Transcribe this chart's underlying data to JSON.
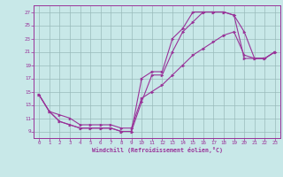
{
  "xlabel": "Windchill (Refroidissement éolien,°C)",
  "background_color": "#c8e8e8",
  "grid_color": "#99bbbb",
  "line_color": "#993399",
  "spine_color": "#993399",
  "xlim": [
    -0.5,
    23.5
  ],
  "ylim": [
    8.0,
    28.0
  ],
  "xticks": [
    0,
    1,
    2,
    3,
    4,
    5,
    6,
    7,
    8,
    9,
    10,
    11,
    12,
    13,
    14,
    15,
    16,
    17,
    18,
    19,
    20,
    21,
    22,
    23
  ],
  "yticks": [
    9,
    11,
    13,
    15,
    17,
    19,
    21,
    23,
    25,
    27
  ],
  "line1_x": [
    0,
    1,
    2,
    3,
    4,
    5,
    6,
    7,
    8,
    9,
    10,
    11,
    12,
    13,
    14,
    15,
    16,
    17,
    18,
    19,
    20,
    21,
    22,
    23
  ],
  "line1_y": [
    14.5,
    12.0,
    10.5,
    10.0,
    9.5,
    9.5,
    9.5,
    9.5,
    9.0,
    9.0,
    13.5,
    17.5,
    17.5,
    21.0,
    24.0,
    25.5,
    27.0,
    27.0,
    27.0,
    26.5,
    20.0,
    20.0,
    20.0,
    21.0
  ],
  "line2_x": [
    0,
    1,
    2,
    3,
    4,
    5,
    6,
    7,
    8,
    9,
    10,
    11,
    12,
    13,
    14,
    15,
    16,
    17,
    18,
    19,
    20,
    21,
    22,
    23
  ],
  "line2_y": [
    14.5,
    12.0,
    11.5,
    11.0,
    10.0,
    10.0,
    10.0,
    10.0,
    9.5,
    9.5,
    14.0,
    15.0,
    16.0,
    17.5,
    19.0,
    20.5,
    21.5,
    22.5,
    23.5,
    24.0,
    20.5,
    20.0,
    20.0,
    21.0
  ],
  "line3_x": [
    0,
    1,
    2,
    3,
    4,
    5,
    6,
    7,
    8,
    9,
    10,
    11,
    12,
    13,
    14,
    15,
    16,
    17,
    18,
    19,
    20,
    21,
    22,
    23
  ],
  "line3_y": [
    14.5,
    12.0,
    10.5,
    10.0,
    9.5,
    9.5,
    9.5,
    9.5,
    9.0,
    9.0,
    17.0,
    18.0,
    18.0,
    23.0,
    24.5,
    27.0,
    27.0,
    27.0,
    27.0,
    26.5,
    24.0,
    20.0,
    20.0,
    21.0
  ]
}
